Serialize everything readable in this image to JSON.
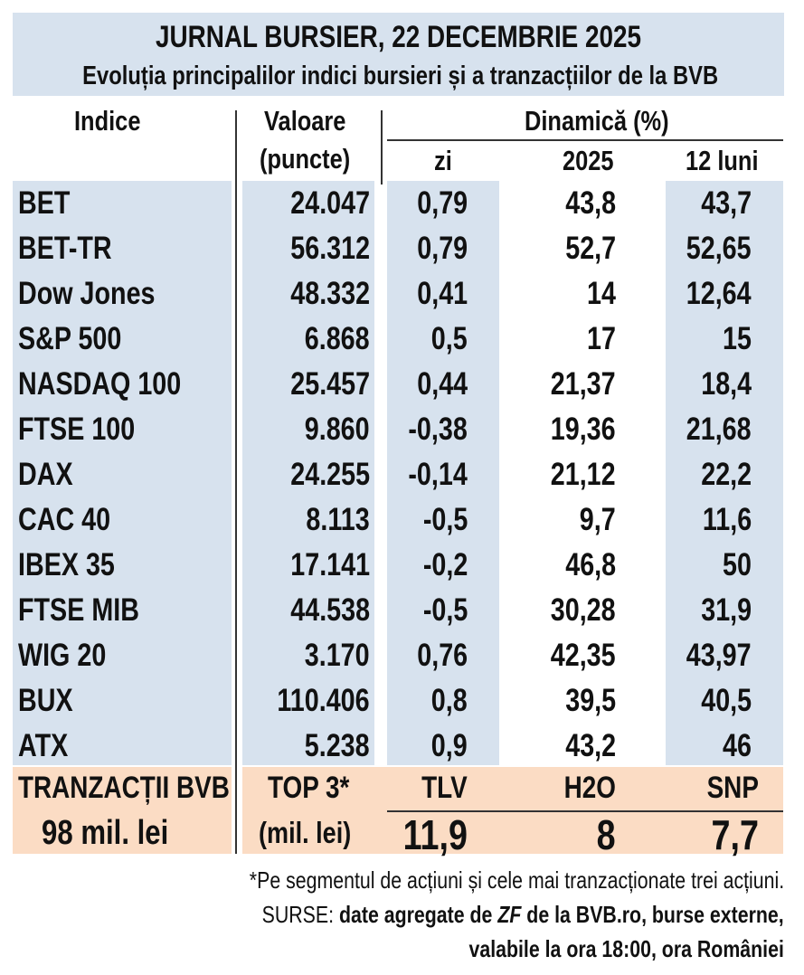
{
  "header": {
    "title": "JURNAL BURSIER, 22 DECEMBRIE 2025",
    "subtitle": "Evoluția principalilor indici bursieri și a tranzacțiilor de la BVB"
  },
  "columns": {
    "index": "Indice",
    "value_line1": "Valoare",
    "value_line2": "(puncte)",
    "dynamics": "Dinamică (%)",
    "day": "zi",
    "year": "2025",
    "months12": "12 luni"
  },
  "rows": [
    {
      "name": "BET",
      "value": "24.047",
      "day": "0,79",
      "year": "43,8",
      "months12": "43,7"
    },
    {
      "name": "BET-TR",
      "value": "56.312",
      "day": "0,79",
      "year": "52,7",
      "months12": "52,65"
    },
    {
      "name": "Dow Jones",
      "value": "48.332",
      "day": "0,41",
      "year": "14",
      "months12": "12,64"
    },
    {
      "name": "S&P 500",
      "value": "6.868",
      "day": "0,5",
      "year": "17",
      "months12": "15"
    },
    {
      "name": "NASDAQ 100",
      "value": "25.457",
      "day": "0,44",
      "year": "21,37",
      "months12": "18,4"
    },
    {
      "name": "FTSE 100",
      "value": "9.860",
      "day": "-0,38",
      "year": "19,36",
      "months12": "21,68"
    },
    {
      "name": "DAX",
      "value": "24.255",
      "day": "-0,14",
      "year": "21,12",
      "months12": "22,2"
    },
    {
      "name": "CAC 40",
      "value": "8.113",
      "day": "-0,5",
      "year": "9,7",
      "months12": "11,6"
    },
    {
      "name": "IBEX 35",
      "value": "17.141",
      "day": "-0,2",
      "year": "46,8",
      "months12": "50"
    },
    {
      "name": "FTSE MIB",
      "value": "44.538",
      "day": "-0,5",
      "year": "30,28",
      "months12": "31,9"
    },
    {
      "name": "WIG 20",
      "value": "3.170",
      "day": "0,76",
      "year": "42,35",
      "months12": "43,97"
    },
    {
      "name": "BUX",
      "value": "110.406",
      "day": "0,8",
      "year": "39,5",
      "months12": "40,5"
    },
    {
      "name": "ATX",
      "value": "5.238",
      "day": "0,9",
      "year": "43,2",
      "months12": "46"
    }
  ],
  "bvb": {
    "label": "TRANZACȚII BVB",
    "amount": "98 mil. lei",
    "top3_label": "TOP 3*",
    "top3_unit": "(mil. lei)",
    "stocks": [
      {
        "ticker": "TLV",
        "value": "11,9"
      },
      {
        "ticker": "H2O",
        "value": "8"
      },
      {
        "ticker": "SNP",
        "value": "7,7"
      }
    ]
  },
  "footer": {
    "footnote": "*Pe segmentul de acțiuni și cele mai tranzacționate trei acțiuni.",
    "sources_prefix": "SURSE: ",
    "sources_bold1": "date agregate de ",
    "sources_italic": "ZF",
    "sources_bold2": " de la BVB.ro, burse externe,",
    "sources_line2": "valabile la ora 18:00, ora României"
  },
  "colors": {
    "header_bg": "#d7e2ee",
    "band_bg": "#d7e2ee",
    "bvb_bg": "#fbdcc4"
  }
}
